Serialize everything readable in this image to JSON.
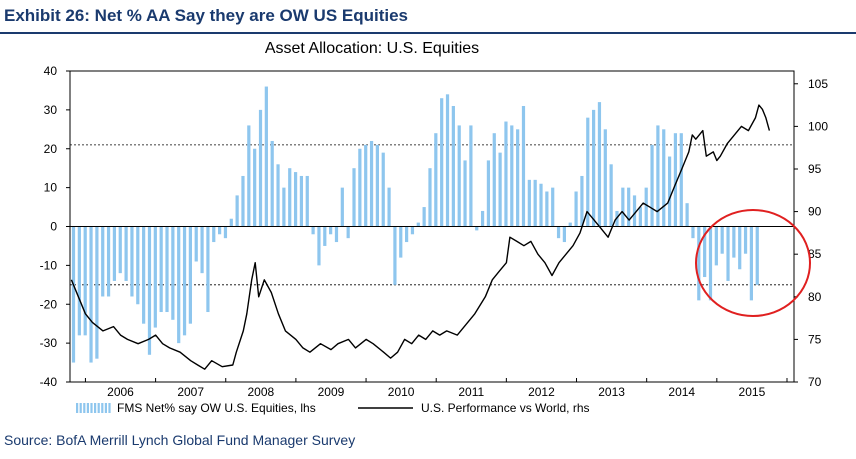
{
  "header": {
    "exhibit_title": "Exhibit 26: Net % AA Say they are OW US Equities"
  },
  "footer": {
    "source": "Source: BofA Merrill Lynch Global Fund Manager Survey"
  },
  "colors": {
    "bars": "#8ec6ee",
    "line": "#000000",
    "circle": "#e02020",
    "axis": "#000000"
  },
  "chart_data": {
    "type": "bar+line",
    "title": "Asset Allocation: U.S. Equities",
    "x_ticks": [
      "2006",
      "2007",
      "2008",
      "2009",
      "2010",
      "2011",
      "2012",
      "2013",
      "2014",
      "2015"
    ],
    "x_range": [
      2005.78,
      2016.1
    ],
    "y_left": {
      "range": [
        -40,
        40
      ],
      "ticks": [
        "-40",
        "-30",
        "-20",
        "-10",
        "0",
        "10",
        "20",
        "30",
        "40"
      ]
    },
    "y_right": {
      "range": [
        70,
        106.5
      ],
      "ticks": [
        "70",
        "75",
        "80",
        "85",
        "90",
        "95",
        "100",
        "105"
      ]
    },
    "reference_lines_left": [
      21,
      -15
    ],
    "legend": {
      "bars_label": "FMS Net% say OW U.S. Equities, lhs",
      "line_label": "U.S. Performance vs World, rhs"
    },
    "bar_start": 2005.83,
    "bar_step": 0.0833,
    "bar_values": [
      -35,
      -28,
      -28,
      -35,
      -34,
      -18,
      -18,
      -14,
      -12,
      -14,
      -18,
      -20,
      -25,
      -33,
      -26,
      -22,
      -22,
      -24,
      -30,
      -28,
      -25,
      -9,
      -12,
      -22,
      -4,
      -2,
      -3,
      2,
      8,
      13,
      26,
      20,
      30,
      36,
      22,
      16,
      10,
      15,
      14,
      13,
      13,
      -2,
      -10,
      -5,
      -2,
      -4,
      10,
      -3,
      15,
      20,
      21,
      22,
      21,
      19,
      10,
      -15,
      -8,
      -4,
      -2,
      1,
      5,
      15,
      24,
      33,
      34,
      31,
      26,
      17,
      26,
      -1,
      4,
      17,
      24,
      19,
      27,
      26,
      25,
      31,
      12,
      12,
      11,
      9,
      10,
      -3,
      -4,
      1,
      9,
      13,
      28,
      30,
      32,
      25,
      16,
      4,
      10,
      10,
      8,
      5,
      10,
      21,
      26,
      25,
      18,
      24,
      24,
      6,
      -3,
      -19,
      -13,
      -19,
      -10,
      -7,
      -14,
      -8,
      -11,
      -7,
      -19,
      -15
    ],
    "line_points": [
      [
        2005.8,
        82
      ],
      [
        2005.9,
        80
      ],
      [
        2006.0,
        78
      ],
      [
        2006.1,
        77
      ],
      [
        2006.25,
        76
      ],
      [
        2006.4,
        76.5
      ],
      [
        2006.5,
        75.5
      ],
      [
        2006.6,
        75
      ],
      [
        2006.75,
        74.5
      ],
      [
        2006.9,
        75
      ],
      [
        2007.0,
        75.5
      ],
      [
        2007.1,
        74.5
      ],
      [
        2007.2,
        74
      ],
      [
        2007.35,
        73.5
      ],
      [
        2007.5,
        72.5
      ],
      [
        2007.6,
        72
      ],
      [
        2007.7,
        71.5
      ],
      [
        2007.8,
        72.5
      ],
      [
        2007.95,
        71.8
      ],
      [
        2008.1,
        72
      ],
      [
        2008.15,
        73.5
      ],
      [
        2008.25,
        76
      ],
      [
        2008.3,
        78
      ],
      [
        2008.37,
        82
      ],
      [
        2008.42,
        84
      ],
      [
        2008.47,
        80
      ],
      [
        2008.55,
        82
      ],
      [
        2008.65,
        80.5
      ],
      [
        2008.75,
        78
      ],
      [
        2008.85,
        76
      ],
      [
        2009.0,
        75
      ],
      [
        2009.1,
        74
      ],
      [
        2009.2,
        73.5
      ],
      [
        2009.35,
        74.5
      ],
      [
        2009.5,
        73.8
      ],
      [
        2009.6,
        74.5
      ],
      [
        2009.75,
        75
      ],
      [
        2009.85,
        74
      ],
      [
        2010.0,
        75
      ],
      [
        2010.1,
        74.5
      ],
      [
        2010.25,
        73.5
      ],
      [
        2010.35,
        72.8
      ],
      [
        2010.45,
        73.5
      ],
      [
        2010.55,
        75
      ],
      [
        2010.65,
        74.5
      ],
      [
        2010.75,
        75.5
      ],
      [
        2010.85,
        75
      ],
      [
        2010.95,
        76
      ],
      [
        2011.05,
        75.5
      ],
      [
        2011.15,
        76
      ],
      [
        2011.3,
        75.5
      ],
      [
        2011.4,
        76.5
      ],
      [
        2011.55,
        78
      ],
      [
        2011.7,
        80
      ],
      [
        2011.8,
        82
      ],
      [
        2011.9,
        83
      ],
      [
        2012.0,
        84
      ],
      [
        2012.05,
        87
      ],
      [
        2012.15,
        86.5
      ],
      [
        2012.25,
        86
      ],
      [
        2012.35,
        86.5
      ],
      [
        2012.45,
        85
      ],
      [
        2012.55,
        84
      ],
      [
        2012.65,
        82.5
      ],
      [
        2012.75,
        84
      ],
      [
        2012.85,
        85
      ],
      [
        2012.95,
        86
      ],
      [
        2013.05,
        87.5
      ],
      [
        2013.15,
        90
      ],
      [
        2013.25,
        89
      ],
      [
        2013.35,
        88
      ],
      [
        2013.45,
        87
      ],
      [
        2013.55,
        89
      ],
      [
        2013.65,
        90
      ],
      [
        2013.75,
        89
      ],
      [
        2013.85,
        90
      ],
      [
        2013.95,
        91
      ],
      [
        2014.05,
        90.5
      ],
      [
        2014.15,
        90
      ],
      [
        2014.3,
        91
      ],
      [
        2014.4,
        93
      ],
      [
        2014.5,
        95
      ],
      [
        2014.6,
        97
      ],
      [
        2014.65,
        99
      ],
      [
        2014.7,
        98.5
      ],
      [
        2014.8,
        99.5
      ],
      [
        2014.85,
        96.5
      ],
      [
        2014.95,
        97
      ],
      [
        2015.0,
        96
      ],
      [
        2015.05,
        96.5
      ],
      [
        2015.15,
        98
      ],
      [
        2015.25,
        99
      ],
      [
        2015.35,
        100
      ],
      [
        2015.45,
        99.5
      ],
      [
        2015.55,
        101
      ],
      [
        2015.6,
        102.5
      ],
      [
        2015.65,
        102
      ],
      [
        2015.7,
        101
      ],
      [
        2015.75,
        99.5
      ]
    ]
  }
}
